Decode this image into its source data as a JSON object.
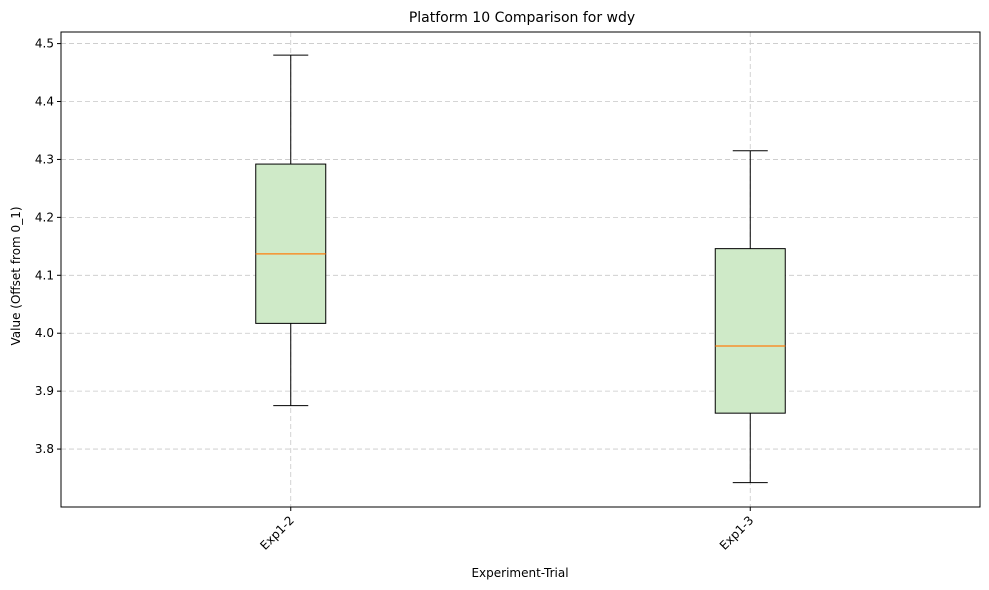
{
  "chart_data": {
    "type": "box",
    "title": "Platform 10 Comparison for wdy",
    "xlabel": "Experiment-Trial",
    "ylabel": "Value (Offset from 0_1)",
    "categories": [
      "Exp1-2",
      "Exp1-3"
    ],
    "boxes": [
      {
        "name": "Exp1-2",
        "whisker_low": 3.875,
        "q1": 4.017,
        "median": 4.137,
        "q3": 4.292,
        "whisker_high": 4.48
      },
      {
        "name": "Exp1-3",
        "whisker_low": 3.742,
        "q1": 3.862,
        "median": 3.978,
        "q3": 4.146,
        "whisker_high": 4.315
      }
    ],
    "ylim": [
      3.7,
      4.52
    ],
    "yticks": [
      3.8,
      3.9,
      4.0,
      4.1,
      4.2,
      4.3,
      4.4,
      4.5
    ],
    "ytick_labels": [
      "3.8",
      "3.9",
      "4.0",
      "4.1",
      "4.2",
      "4.3",
      "4.4",
      "4.5"
    ],
    "grid": true,
    "xtick_rotation": 45,
    "colors": {
      "box_fill": "#cfeac8",
      "median": "#ff7f0e",
      "edge": "#000000",
      "grid": "#c8c8c8"
    }
  }
}
